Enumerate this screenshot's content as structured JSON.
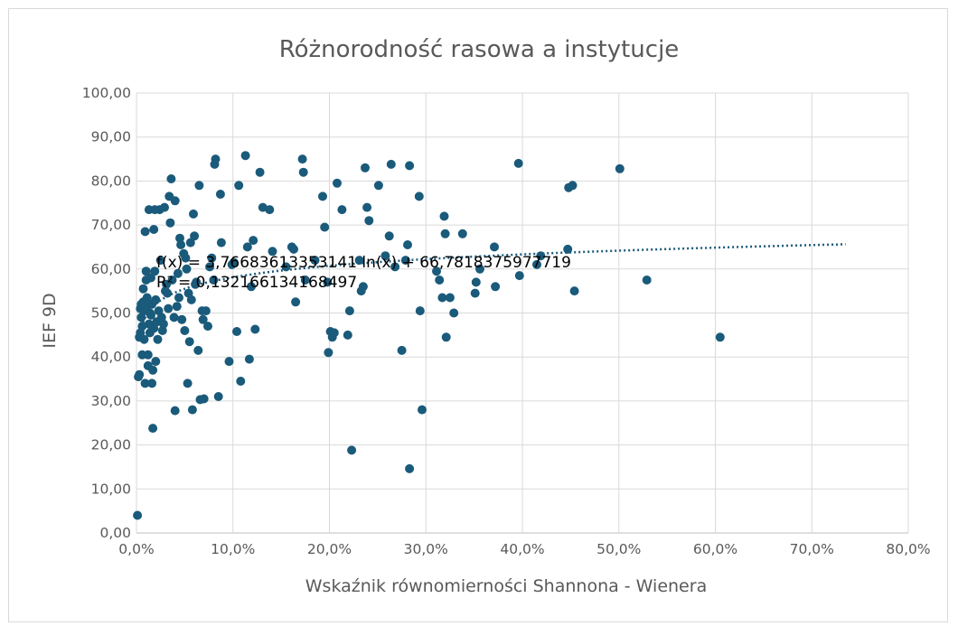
{
  "chart_data": {
    "type": "scatter",
    "title": "Różnorodność rasowa a instytucje",
    "xlabel": "Wskaźnik równomierności Shannona - Wienera",
    "ylabel": "IEF 9D",
    "xlim": [
      0,
      0.8
    ],
    "ylim": [
      0,
      100
    ],
    "x_ticks": [
      "0,0%",
      "10,0%",
      "20,0%",
      "30,0%",
      "40,0%",
      "50,0%",
      "60,0%",
      "70,0%",
      "80,0%"
    ],
    "y_ticks": [
      "0,00",
      "10,00",
      "20,00",
      "30,00",
      "40,00",
      "50,00",
      "60,00",
      "70,00",
      "80,00",
      "90,00",
      "100,00"
    ],
    "grid": true,
    "point_color": "#1a5a7a",
    "trendline": {
      "type": "logarithmic",
      "a": 3.76683613353141,
      "b": 66.7818375977719,
      "x_range": [
        0.003,
        0.735
      ],
      "style": "dotted",
      "equation": "f(x) = 3,76683613353141 ln(x) + 66,7818375977719",
      "r_squared": "R² = 0,132166134168497"
    },
    "points": [
      [
        0.001,
        4.0
      ],
      [
        0.002,
        35.5
      ],
      [
        0.003,
        36.0
      ],
      [
        0.003,
        44.5
      ],
      [
        0.004,
        45.5
      ],
      [
        0.004,
        51.0
      ],
      [
        0.005,
        52.0
      ],
      [
        0.005,
        49.0
      ],
      [
        0.006,
        40.5
      ],
      [
        0.006,
        47.0
      ],
      [
        0.007,
        52.5
      ],
      [
        0.007,
        55.5
      ],
      [
        0.008,
        50.5
      ],
      [
        0.008,
        44.0
      ],
      [
        0.009,
        68.5
      ],
      [
        0.009,
        34.0
      ],
      [
        0.01,
        57.5
      ],
      [
        0.01,
        59.5
      ],
      [
        0.011,
        51.5
      ],
      [
        0.011,
        53.5
      ],
      [
        0.012,
        40.5
      ],
      [
        0.012,
        38.0
      ],
      [
        0.013,
        73.5
      ],
      [
        0.013,
        47.5
      ],
      [
        0.014,
        50.0
      ],
      [
        0.014,
        45.5
      ],
      [
        0.015,
        58.0
      ],
      [
        0.015,
        49.5
      ],
      [
        0.016,
        52.0
      ],
      [
        0.016,
        34.0
      ],
      [
        0.017,
        23.8
      ],
      [
        0.017,
        37.0
      ],
      [
        0.018,
        46.5
      ],
      [
        0.018,
        69.0
      ],
      [
        0.019,
        59.5
      ],
      [
        0.019,
        73.5
      ],
      [
        0.02,
        53.0
      ],
      [
        0.02,
        39.0
      ],
      [
        0.021,
        48.0
      ],
      [
        0.022,
        44.0
      ],
      [
        0.023,
        50.5
      ],
      [
        0.024,
        73.5
      ],
      [
        0.025,
        62.0
      ],
      [
        0.026,
        49.0
      ],
      [
        0.027,
        46.0
      ],
      [
        0.028,
        47.5
      ],
      [
        0.029,
        74.0
      ],
      [
        0.03,
        55.0
      ],
      [
        0.031,
        56.5
      ],
      [
        0.032,
        54.5
      ],
      [
        0.033,
        51.0
      ],
      [
        0.034,
        76.5
      ],
      [
        0.035,
        70.5
      ],
      [
        0.036,
        80.5
      ],
      [
        0.037,
        57.5
      ],
      [
        0.039,
        49.0
      ],
      [
        0.04,
        27.8
      ],
      [
        0.04,
        75.5
      ],
      [
        0.042,
        51.5
      ],
      [
        0.043,
        59.0
      ],
      [
        0.044,
        53.5
      ],
      [
        0.045,
        67.0
      ],
      [
        0.046,
        65.5
      ],
      [
        0.047,
        48.5
      ],
      [
        0.049,
        63.5
      ],
      [
        0.05,
        46.0
      ],
      [
        0.051,
        62.5
      ],
      [
        0.052,
        60.0
      ],
      [
        0.053,
        34.0
      ],
      [
        0.054,
        54.5
      ],
      [
        0.055,
        43.5
      ],
      [
        0.056,
        66.0
      ],
      [
        0.057,
        53.0
      ],
      [
        0.058,
        28.0
      ],
      [
        0.059,
        72.5
      ],
      [
        0.06,
        67.5
      ],
      [
        0.061,
        56.5
      ],
      [
        0.062,
        57.0
      ],
      [
        0.064,
        41.5
      ],
      [
        0.065,
        79.0
      ],
      [
        0.066,
        30.3
      ],
      [
        0.068,
        50.5
      ],
      [
        0.069,
        48.5
      ],
      [
        0.07,
        30.5
      ],
      [
        0.072,
        50.5
      ],
      [
        0.074,
        47.0
      ],
      [
        0.076,
        60.5
      ],
      [
        0.078,
        62.5
      ],
      [
        0.08,
        57.5
      ],
      [
        0.081,
        83.8
      ],
      [
        0.082,
        85.0
      ],
      [
        0.085,
        31.0
      ],
      [
        0.087,
        77.0
      ],
      [
        0.088,
        66.0
      ],
      [
        0.096,
        39.0
      ],
      [
        0.099,
        61.0
      ],
      [
        0.101,
        61.5
      ],
      [
        0.104,
        45.8
      ],
      [
        0.106,
        79.0
      ],
      [
        0.108,
        34.5
      ],
      [
        0.113,
        85.8
      ],
      [
        0.115,
        65.0
      ],
      [
        0.117,
        39.5
      ],
      [
        0.119,
        56.0
      ],
      [
        0.121,
        66.5
      ],
      [
        0.123,
        46.3
      ],
      [
        0.128,
        82.0
      ],
      [
        0.131,
        74.0
      ],
      [
        0.138,
        73.5
      ],
      [
        0.141,
        64.0
      ],
      [
        0.155,
        60.5
      ],
      [
        0.161,
        65.0
      ],
      [
        0.163,
        64.5
      ],
      [
        0.165,
        52.5
      ],
      [
        0.172,
        85.0
      ],
      [
        0.173,
        82.0
      ],
      [
        0.175,
        57.5
      ],
      [
        0.185,
        62.0
      ],
      [
        0.193,
        76.5
      ],
      [
        0.195,
        69.5
      ],
      [
        0.198,
        57.0
      ],
      [
        0.199,
        41.0
      ],
      [
        0.201,
        45.8
      ],
      [
        0.203,
        44.5
      ],
      [
        0.205,
        45.5
      ],
      [
        0.208,
        79.5
      ],
      [
        0.213,
        73.5
      ],
      [
        0.219,
        45.0
      ],
      [
        0.221,
        50.5
      ],
      [
        0.223,
        18.8
      ],
      [
        0.231,
        62.0
      ],
      [
        0.233,
        55.0
      ],
      [
        0.235,
        56.0
      ],
      [
        0.237,
        83.0
      ],
      [
        0.239,
        74.0
      ],
      [
        0.241,
        71.0
      ],
      [
        0.251,
        79.0
      ],
      [
        0.258,
        63.0
      ],
      [
        0.262,
        67.5
      ],
      [
        0.264,
        83.8
      ],
      [
        0.268,
        60.5
      ],
      [
        0.275,
        41.5
      ],
      [
        0.279,
        62.0
      ],
      [
        0.281,
        65.5
      ],
      [
        0.283,
        83.5
      ],
      [
        0.283,
        14.6
      ],
      [
        0.293,
        76.5
      ],
      [
        0.294,
        50.5
      ],
      [
        0.296,
        28.0
      ],
      [
        0.311,
        59.5
      ],
      [
        0.314,
        57.5
      ],
      [
        0.317,
        53.5
      ],
      [
        0.319,
        72.0
      ],
      [
        0.32,
        68.0
      ],
      [
        0.321,
        44.5
      ],
      [
        0.325,
        53.5
      ],
      [
        0.329,
        50.0
      ],
      [
        0.338,
        68.0
      ],
      [
        0.351,
        54.5
      ],
      [
        0.352,
        57.0
      ],
      [
        0.356,
        60.0
      ],
      [
        0.371,
        65.0
      ],
      [
        0.372,
        56.0
      ],
      [
        0.396,
        84.0
      ],
      [
        0.397,
        58.5
      ],
      [
        0.415,
        61.0
      ],
      [
        0.419,
        63.0
      ],
      [
        0.447,
        64.5
      ],
      [
        0.448,
        78.5
      ],
      [
        0.452,
        79.0
      ],
      [
        0.454,
        55.0
      ],
      [
        0.501,
        82.8
      ],
      [
        0.529,
        57.5
      ],
      [
        0.605,
        44.5
      ]
    ]
  }
}
